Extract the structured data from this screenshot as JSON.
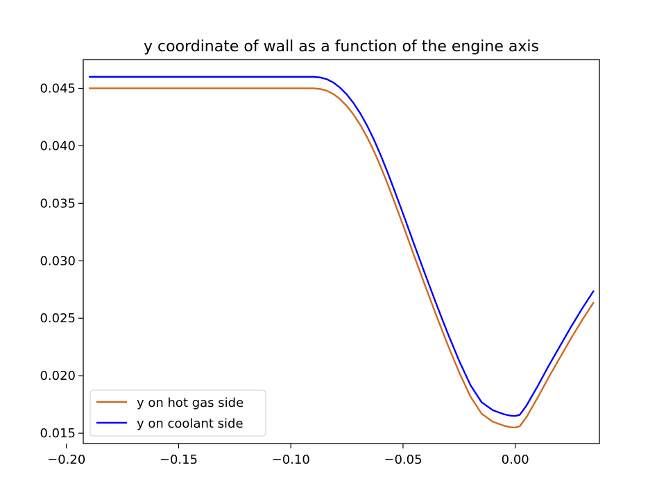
{
  "chart_data": {
    "type": "line",
    "title": "y coordinate of wall as a function of the engine axis",
    "xlabel": "",
    "ylabel": "",
    "xlim": [
      -0.1925,
      0.0375
    ],
    "ylim": [
      0.0141,
      0.0475
    ],
    "x_ticks": [
      -0.2,
      -0.15,
      -0.1,
      -0.05,
      0.0
    ],
    "x_tick_labels": [
      "−0.20",
      "−0.15",
      "−0.10",
      "−0.05",
      "0.00"
    ],
    "y_ticks": [
      0.015,
      0.02,
      0.025,
      0.03,
      0.035,
      0.04,
      0.045
    ],
    "y_tick_labels": [
      "0.015",
      "0.020",
      "0.025",
      "0.030",
      "0.035",
      "0.040",
      "0.045"
    ],
    "grid": false,
    "legend_position": "lower-left",
    "series": [
      {
        "name": "y on hot gas side",
        "color": "#d2691e",
        "points": [
          [
            -0.19,
            0.045
          ],
          [
            -0.16,
            0.045
          ],
          [
            -0.13,
            0.045
          ],
          [
            -0.1,
            0.045
          ],
          [
            -0.09,
            0.045
          ],
          [
            -0.087,
            0.04495
          ],
          [
            -0.084,
            0.0448
          ],
          [
            -0.081,
            0.0445
          ],
          [
            -0.078,
            0.04405
          ],
          [
            -0.075,
            0.04345
          ],
          [
            -0.072,
            0.0427
          ],
          [
            -0.069,
            0.0418
          ],
          [
            -0.066,
            0.04075
          ],
          [
            -0.063,
            0.03955
          ],
          [
            -0.06,
            0.0382
          ],
          [
            -0.057,
            0.03675
          ],
          [
            -0.054,
            0.0352
          ],
          [
            -0.05,
            0.0331
          ],
          [
            -0.045,
            0.0304
          ],
          [
            -0.04,
            0.02775
          ],
          [
            -0.035,
            0.02515
          ],
          [
            -0.03,
            0.02265
          ],
          [
            -0.025,
            0.0203
          ],
          [
            -0.02,
            0.0182
          ],
          [
            -0.015,
            0.0167
          ],
          [
            -0.01,
            0.016
          ],
          [
            -0.005,
            0.01565
          ],
          [
            -0.002,
            0.01552
          ],
          [
            0.0,
            0.0155
          ],
          [
            0.002,
            0.0156
          ],
          [
            0.005,
            0.0164
          ],
          [
            0.01,
            0.0181
          ],
          [
            0.015,
            0.0199
          ],
          [
            0.02,
            0.0216
          ],
          [
            0.025,
            0.0233
          ],
          [
            0.03,
            0.0249
          ],
          [
            0.035,
            0.0264
          ]
        ]
      },
      {
        "name": "y on coolant side",
        "color": "#0000ff",
        "points": [
          [
            -0.19,
            0.046
          ],
          [
            -0.16,
            0.046
          ],
          [
            -0.13,
            0.046
          ],
          [
            -0.1,
            0.046
          ],
          [
            -0.09,
            0.046
          ],
          [
            -0.087,
            0.04595
          ],
          [
            -0.084,
            0.0458
          ],
          [
            -0.081,
            0.0455
          ],
          [
            -0.078,
            0.04505
          ],
          [
            -0.075,
            0.04445
          ],
          [
            -0.072,
            0.0437
          ],
          [
            -0.069,
            0.0428
          ],
          [
            -0.066,
            0.04175
          ],
          [
            -0.063,
            0.04055
          ],
          [
            -0.06,
            0.0392
          ],
          [
            -0.057,
            0.03775
          ],
          [
            -0.054,
            0.0362
          ],
          [
            -0.05,
            0.0341
          ],
          [
            -0.045,
            0.0314
          ],
          [
            -0.04,
            0.02875
          ],
          [
            -0.035,
            0.02615
          ],
          [
            -0.03,
            0.02365
          ],
          [
            -0.025,
            0.0213
          ],
          [
            -0.02,
            0.0192
          ],
          [
            -0.015,
            0.0177
          ],
          [
            -0.01,
            0.017
          ],
          [
            -0.005,
            0.01665
          ],
          [
            -0.002,
            0.01652
          ],
          [
            0.0,
            0.0165
          ],
          [
            0.002,
            0.0166
          ],
          [
            0.005,
            0.0174
          ],
          [
            0.01,
            0.0191
          ],
          [
            0.015,
            0.0209
          ],
          [
            0.02,
            0.0226
          ],
          [
            0.025,
            0.0243
          ],
          [
            0.03,
            0.0259
          ],
          [
            0.035,
            0.0274
          ]
        ]
      }
    ]
  }
}
